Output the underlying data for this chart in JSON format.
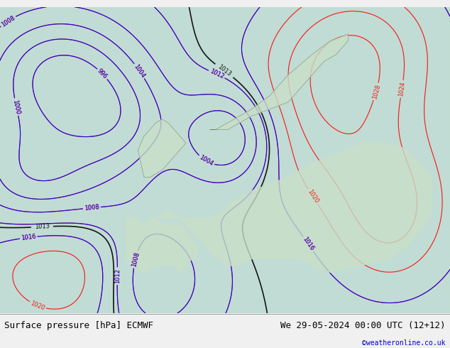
{
  "title_left": "Surface pressure [hPa] ECMWF",
  "title_right": "We 29-05-2024 00:00 UTC (12+12)",
  "copyright": "©weatheronline.co.uk",
  "bg_color": "#e8f4e8",
  "map_ocean_color": "#d0e8f0",
  "map_land_color": "#c8e8c0",
  "contour_color_red": "#cc0000",
  "contour_color_blue": "#0000cc",
  "contour_color_black": "#000000",
  "label_fontsize": 7,
  "footer_fontsize": 9,
  "figsize": [
    6.34,
    4.9
  ],
  "dpi": 100
}
